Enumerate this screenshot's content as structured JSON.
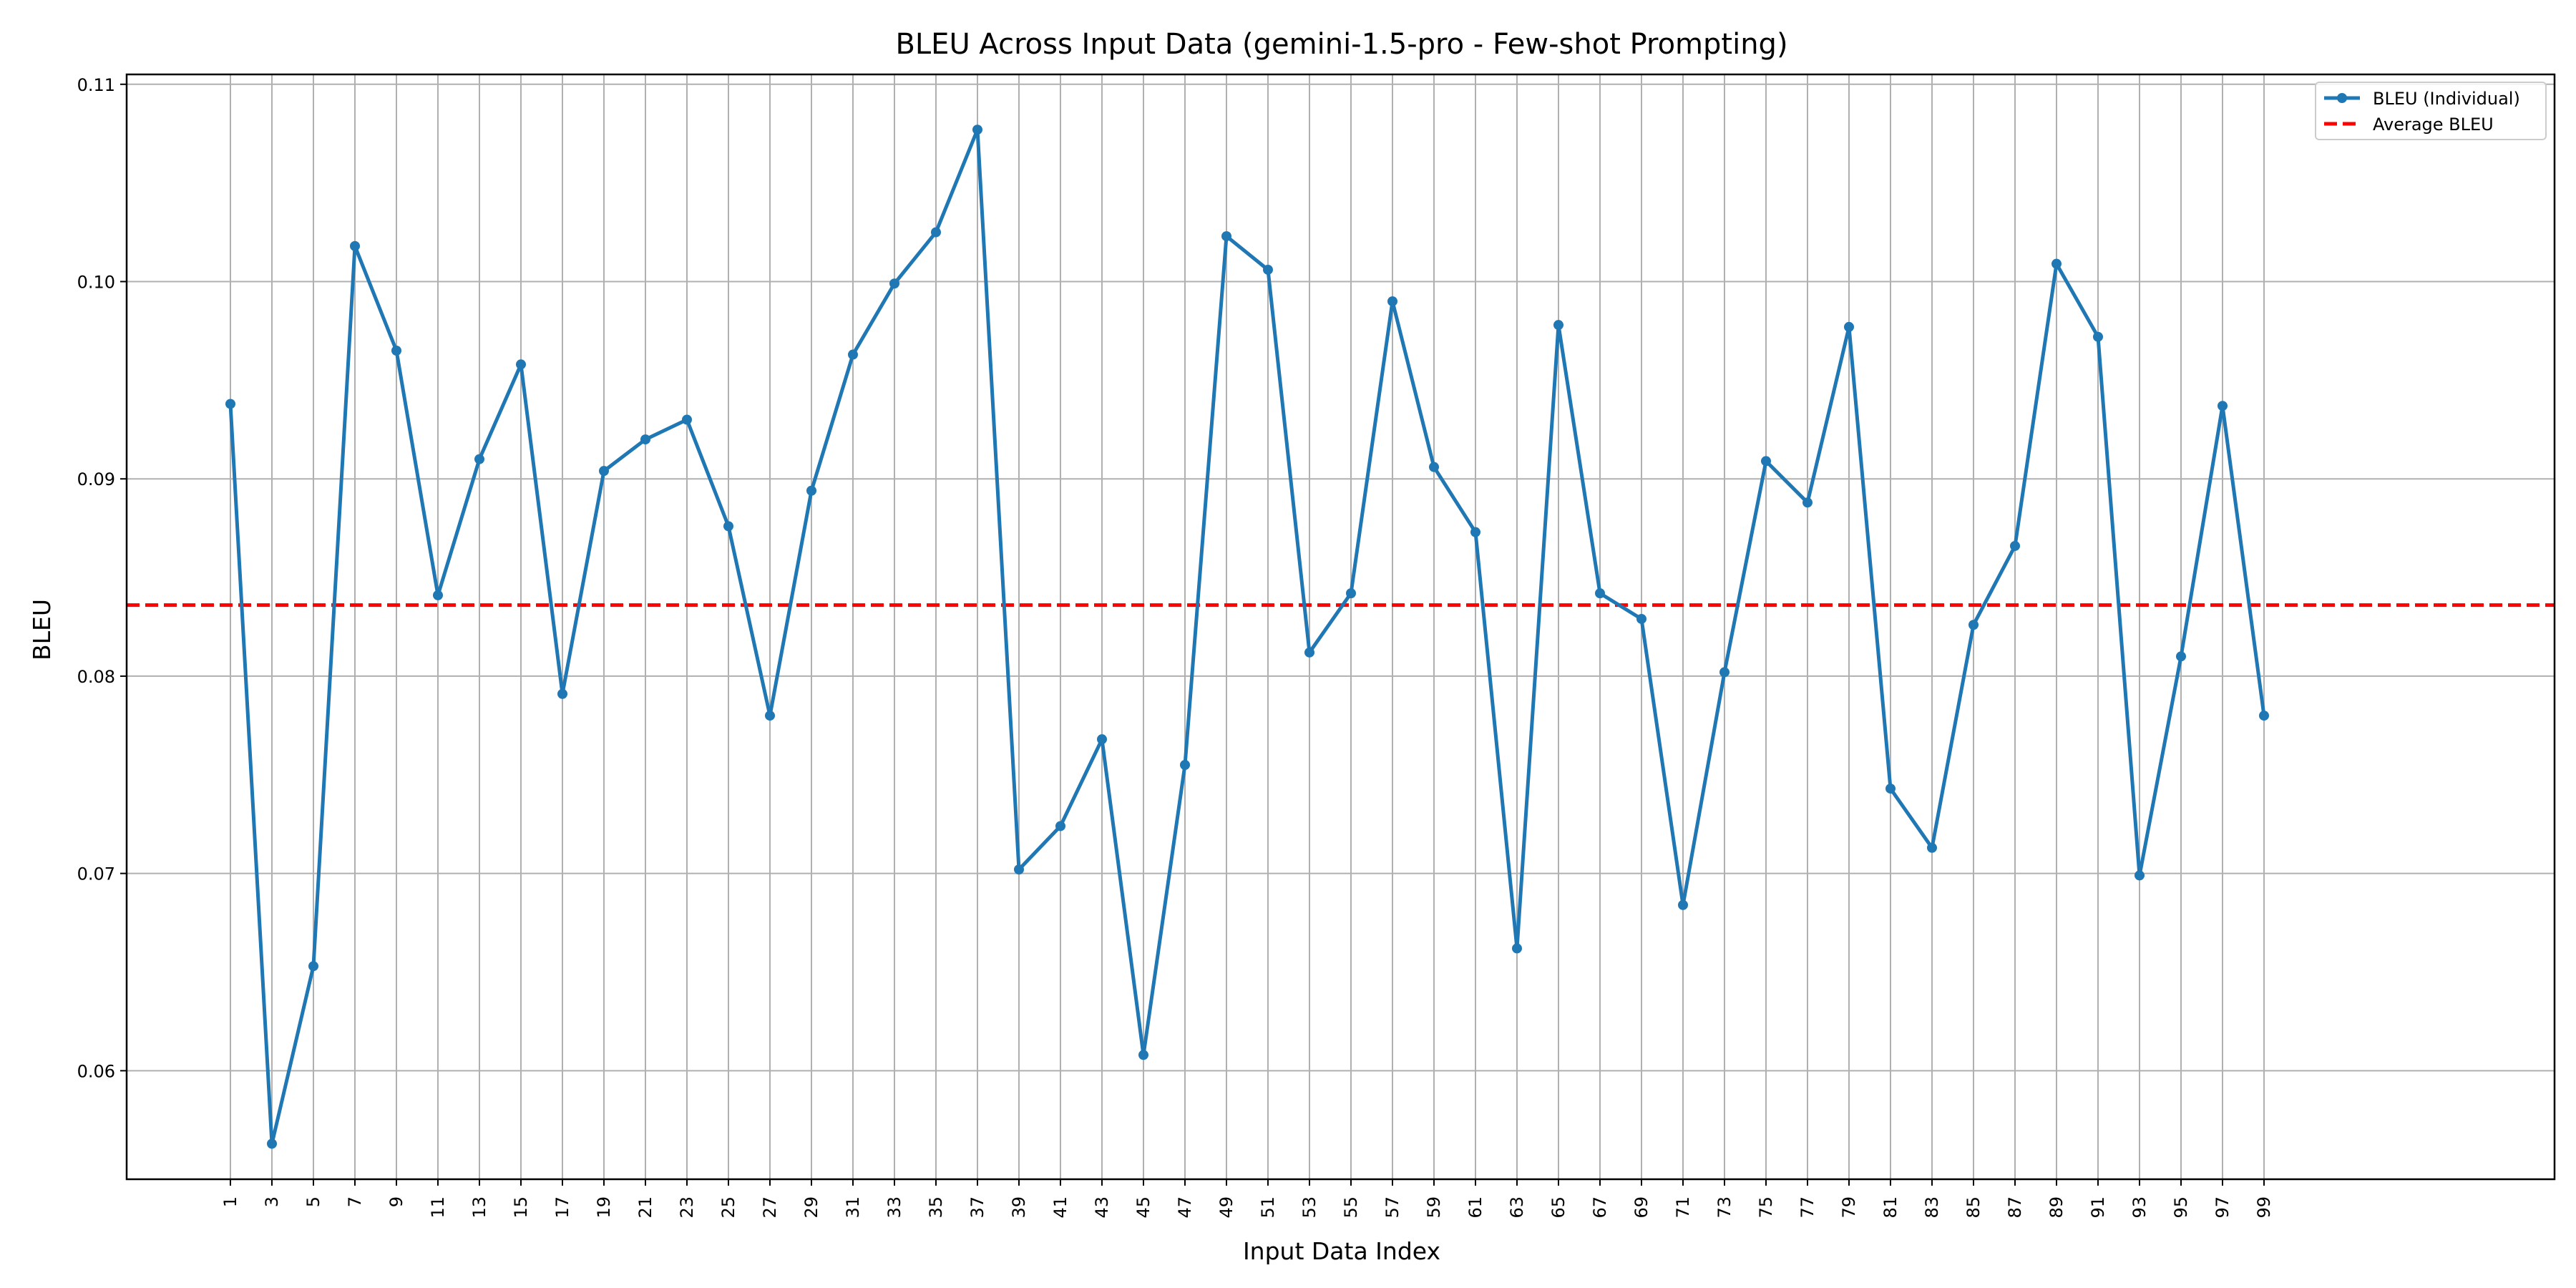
{
  "chart_data": {
    "type": "line",
    "title": "BLEU Across Input Data (gemini-1.5-pro - Few-shot Prompting)",
    "xlabel": "Input Data Index",
    "ylabel": "BLEU",
    "xlim": [
      -4,
      113
    ],
    "ylim": [
      0.0545,
      0.1105
    ],
    "x_ticks": [
      1,
      3,
      5,
      7,
      9,
      11,
      13,
      15,
      17,
      19,
      21,
      23,
      25,
      27,
      29,
      31,
      33,
      35,
      37,
      39,
      41,
      43,
      45,
      47,
      49,
      51,
      53,
      55,
      57,
      59,
      61,
      63,
      65,
      67,
      69,
      71,
      73,
      75,
      77,
      79,
      81,
      83,
      85,
      87,
      89,
      91,
      93,
      95,
      97,
      99
    ],
    "x_tick_labels": [
      "1",
      "3",
      "5",
      "7",
      "9",
      "11",
      "13",
      "15",
      "17",
      "19",
      "21",
      "23",
      "25",
      "27",
      "29",
      "31",
      "33",
      "35",
      "37",
      "39",
      "41",
      "43",
      "45",
      "47",
      "49",
      "51",
      "53",
      "55",
      "57",
      "59",
      "61",
      "63",
      "65",
      "67",
      "69",
      "71",
      "73",
      "75",
      "77",
      "79",
      "81",
      "83",
      "85",
      "87",
      "89",
      "91",
      "93",
      "95",
      "97",
      "99"
    ],
    "y_ticks": [
      0.06,
      0.07,
      0.08,
      0.09,
      0.1,
      0.11
    ],
    "y_tick_labels": [
      "0.06",
      "0.07",
      "0.08",
      "0.09",
      "0.10",
      "0.11"
    ],
    "grid": true,
    "legend_position": "top-right",
    "series": [
      {
        "name": "BLEU (Individual)",
        "color": "#1f77b4",
        "style": "solid-with-markers",
        "x": [
          1,
          3,
          5,
          7,
          9,
          11,
          13,
          15,
          17,
          19,
          21,
          23,
          25,
          27,
          29,
          31,
          33,
          35,
          37,
          39,
          41,
          43,
          45,
          47,
          49,
          51,
          53,
          55,
          57,
          59,
          61,
          63,
          65,
          67,
          69,
          71,
          73,
          75,
          77,
          79,
          81,
          83,
          85,
          87,
          89,
          91,
          93,
          95,
          97,
          99
        ],
        "values": [
          0.0938,
          0.0563,
          0.0653,
          0.1018,
          0.0965,
          0.0841,
          0.091,
          0.0958,
          0.0791,
          0.0904,
          0.092,
          0.093,
          0.0876,
          0.078,
          0.0894,
          0.0963,
          0.0999,
          0.1025,
          0.1077,
          0.0702,
          0.0724,
          0.0768,
          0.0608,
          0.0755,
          0.1023,
          0.1006,
          0.0812,
          0.0842,
          0.099,
          0.0906,
          0.0873,
          0.0662,
          0.0978,
          0.0842,
          0.0829,
          0.0684,
          0.0802,
          0.0909,
          0.0888,
          0.0977,
          0.0743,
          0.0713,
          0.0826,
          0.0866,
          0.1009,
          0.0972,
          0.0699,
          0.081,
          0.0937,
          0.078
        ]
      },
      {
        "name": "Average BLEU",
        "color": "#ff0000",
        "style": "dashed",
        "constant": 0.0836
      }
    ]
  }
}
